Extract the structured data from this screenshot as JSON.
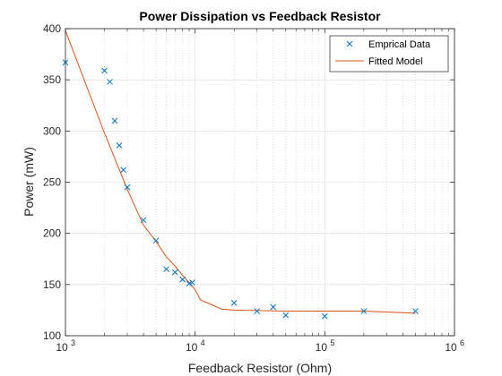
{
  "chart_data": {
    "type": "scatter",
    "title": "Power Dissipation vs Feedback Resistor",
    "xlabel": "Feedback Resistor (Ohm)",
    "ylabel": "Power (mW)",
    "xscale": "log",
    "xlim": [
      1000,
      1000000
    ],
    "ylim": [
      100,
      400
    ],
    "x_ticks": [
      {
        "value": 1000,
        "base": "10",
        "exp": "3"
      },
      {
        "value": 10000,
        "base": "10",
        "exp": "4"
      },
      {
        "value": 100000,
        "base": "10",
        "exp": "5"
      },
      {
        "value": 1000000,
        "base": "10",
        "exp": "6"
      }
    ],
    "y_ticks": [
      100,
      150,
      200,
      250,
      300,
      350,
      400
    ],
    "grid": true,
    "minor_grid_x": true,
    "legend_position": "top-right",
    "series": [
      {
        "name": "Emprical Data",
        "type": "scatter",
        "marker": "x",
        "color": "#0072BD",
        "x": [
          1000,
          2000,
          2200,
          2400,
          2600,
          2800,
          3000,
          4000,
          5000,
          6000,
          7000,
          8000,
          9000,
          9500,
          20000,
          30000,
          40000,
          50000,
          100000,
          200000,
          500000
        ],
        "y": [
          367,
          359,
          348,
          310,
          286,
          262,
          245,
          213,
          193,
          165,
          162,
          155,
          151,
          152,
          132,
          124,
          128,
          120,
          119,
          124,
          124
        ]
      },
      {
        "name": "Fitted Model",
        "type": "line",
        "color": "#D95319",
        "x": [
          1000,
          2000,
          3000,
          4000,
          5000,
          6000,
          7000,
          8000,
          9000,
          10000,
          11000,
          16000,
          20000,
          50000,
          100000,
          200000,
          500000
        ],
        "y": [
          398,
          298,
          243,
          208,
          192,
          177,
          168,
          159,
          152,
          145,
          135,
          126,
          125,
          124,
          124,
          124,
          122
        ]
      }
    ]
  }
}
